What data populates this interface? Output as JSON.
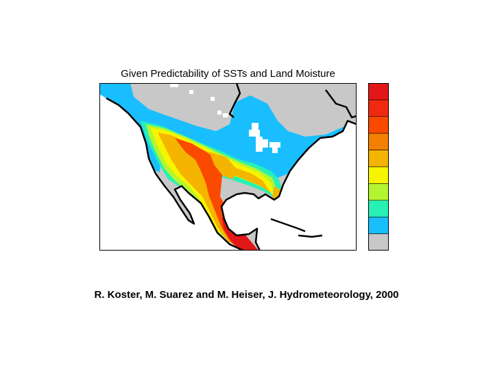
{
  "title": "Given Predictability of SSTs and Land Moisture",
  "credit": "R. Koster, M. Suarez and M. Heiser, J. Hydrometeorology, 2000",
  "colors": {
    "background": "#ffffff",
    "land_gray": "#c8c8c8",
    "ocean": "#ffffff",
    "outline": "#000000",
    "missing": "#ffffff"
  },
  "legend": {
    "colors_top_to_bottom": [
      "#e21818",
      "#f02a10",
      "#fa4a00",
      "#f57f00",
      "#f5b400",
      "#f5f500",
      "#b4f532",
      "#28f0b4",
      "#19beff",
      "#c8c8c8"
    ]
  }
}
